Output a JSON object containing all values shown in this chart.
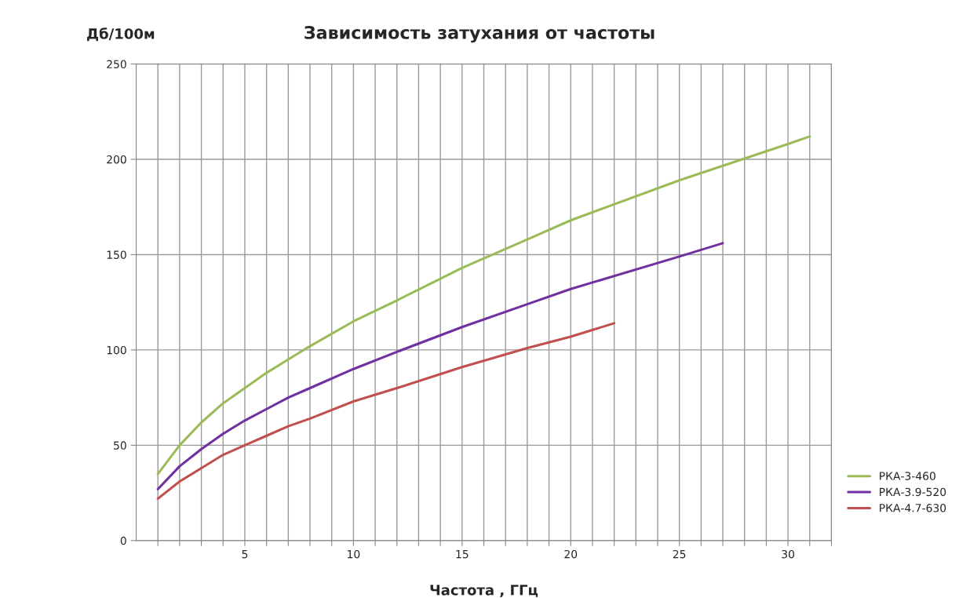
{
  "chart_data": {
    "type": "line",
    "title": "Зависимость затухания от частоты",
    "xlabel": "Частота , ГГц",
    "ylabel": "Дб/100м",
    "xlim": [
      0,
      32
    ],
    "xticks": [
      {
        "value": 1,
        "label": null
      },
      {
        "value": 2,
        "label": null
      },
      {
        "value": 3,
        "label": null
      },
      {
        "value": 4,
        "label": null
      },
      5,
      {
        "value": 6,
        "label": null
      },
      {
        "value": 7,
        "label": null
      },
      {
        "value": 8,
        "label": null
      },
      {
        "value": 9,
        "label": null
      },
      10,
      {
        "value": 11,
        "label": null
      },
      {
        "value": 12,
        "label": null
      },
      {
        "value": 13,
        "label": null
      },
      {
        "value": 14,
        "label": null
      },
      15,
      {
        "value": 16,
        "label": null
      },
      {
        "value": 17,
        "label": null
      },
      {
        "value": 18,
        "label": null
      },
      {
        "value": 19,
        "label": null
      },
      20,
      {
        "value": 21,
        "label": null
      },
      {
        "value": 22,
        "label": null
      },
      {
        "value": 23,
        "label": null
      },
      {
        "value": 24,
        "label": null
      },
      25,
      {
        "value": 26,
        "label": null
      },
      {
        "value": 27,
        "label": null
      },
      {
        "value": 28,
        "label": null
      },
      {
        "value": 29,
        "label": null
      },
      30,
      {
        "value": 31,
        "label": null
      },
      {
        "value": 32,
        "label": null
      }
    ],
    "ylim": [
      0,
      250
    ],
    "yticks": [
      0,
      50,
      100,
      150,
      200,
      250
    ],
    "grid": true,
    "legend": "right",
    "marker": "none",
    "line_style": "solid",
    "series": [
      {
        "name": "РКА-3-460",
        "color": "#9bbb59",
        "x": [
          1,
          2,
          3,
          4,
          5,
          6,
          7,
          8,
          10,
          12,
          15,
          18,
          20,
          25,
          30,
          31
        ],
        "values": [
          35,
          50,
          62,
          72,
          80,
          88,
          95,
          102,
          115,
          126,
          143,
          158,
          168,
          189,
          208,
          212
        ]
      },
      {
        "name": "РКА-3.9-520",
        "color": "#7030a0",
        "x": [
          1,
          2,
          3,
          4,
          5,
          6,
          7,
          8,
          10,
          12,
          15,
          18,
          20,
          25,
          27
        ],
        "values": [
          27,
          39,
          48,
          56,
          63,
          69,
          75,
          80,
          90,
          99,
          112,
          124,
          132,
          149,
          156
        ]
      },
      {
        "name": "РКА-4.7-630",
        "color": "#c0504d",
        "x": [
          1,
          2,
          3,
          4,
          5,
          6,
          7,
          8,
          10,
          12,
          15,
          18,
          20,
          22
        ],
        "values": [
          22,
          31,
          38,
          45,
          50,
          55,
          60,
          64,
          73,
          80,
          91,
          101,
          107,
          114
        ]
      }
    ]
  }
}
